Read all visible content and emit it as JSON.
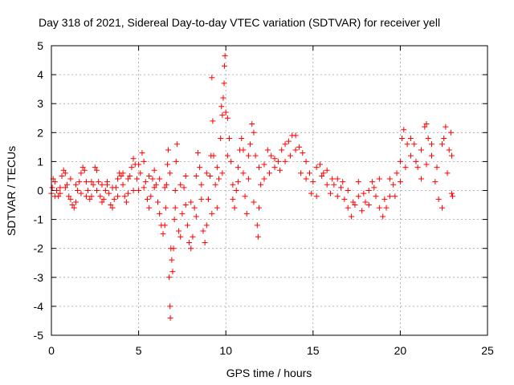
{
  "chart_data": {
    "type": "scatter",
    "title": "Day 318 of 2021, Sidereal Day-to-day VTEC variation (SDTVAR) for receiver yell",
    "xlabel": "GPS time / hours",
    "ylabel": "SDTVAR / TECUs",
    "xlim": [
      0,
      25
    ],
    "ylim": [
      -5,
      5
    ],
    "xticks": [
      0,
      5,
      10,
      15,
      20,
      25
    ],
    "yticks": [
      -5,
      -4,
      -3,
      -2,
      -1,
      0,
      1,
      2,
      3,
      4,
      5
    ],
    "xtick_labels": [
      "0",
      "5",
      "10",
      "15",
      "20",
      "25"
    ],
    "ytick_labels": [
      "-5",
      "-4",
      "-3",
      "-2",
      "-1",
      "0",
      "1",
      "2",
      "3",
      "4",
      "5"
    ],
    "grid": true,
    "marker": "+",
    "color": "#ff0000",
    "series": [
      {
        "name": "SDTVAR",
        "points": [
          [
            0.0,
            -0.1
          ],
          [
            0.05,
            0.1
          ],
          [
            0.1,
            0.4
          ],
          [
            0.2,
            0.3
          ],
          [
            0.3,
            0.0
          ],
          [
            0.4,
            -0.2
          ],
          [
            0.5,
            0.1
          ],
          [
            0.6,
            0.5
          ],
          [
            0.7,
            0.7
          ],
          [
            0.8,
            0.6
          ],
          [
            0.9,
            0.2
          ],
          [
            1.0,
            -0.2
          ],
          [
            1.1,
            -0.3
          ],
          [
            1.2,
            -0.5
          ],
          [
            1.3,
            -0.6
          ],
          [
            1.4,
            -0.4
          ],
          [
            1.5,
            0.0
          ],
          [
            1.6,
            0.3
          ],
          [
            1.7,
            0.6
          ],
          [
            1.8,
            0.8
          ],
          [
            1.9,
            0.7
          ],
          [
            2.0,
            0.3
          ],
          [
            2.1,
            0.0
          ],
          [
            2.2,
            -0.3
          ],
          [
            2.3,
            -0.2
          ],
          [
            2.4,
            0.2
          ],
          [
            2.5,
            0.8
          ],
          [
            2.6,
            0.7
          ],
          [
            2.7,
            0.3
          ],
          [
            2.8,
            -0.2
          ],
          [
            2.9,
            -0.4
          ],
          [
            3.0,
            -0.3
          ],
          [
            3.1,
            0.0
          ],
          [
            3.2,
            0.2
          ],
          [
            3.3,
            -0.1
          ],
          [
            3.4,
            -0.5
          ],
          [
            3.5,
            -0.6
          ],
          [
            3.6,
            -0.3
          ],
          [
            3.7,
            0.1
          ],
          [
            3.8,
            0.4
          ],
          [
            3.9,
            0.6
          ],
          [
            4.0,
            0.5
          ],
          [
            4.1,
            0.2
          ],
          [
            4.2,
            -0.2
          ],
          [
            4.3,
            -0.4
          ],
          [
            4.4,
            -0.1
          ],
          [
            4.5,
            0.5
          ],
          [
            4.6,
            0.8
          ],
          [
            4.7,
            1.1
          ],
          [
            4.8,
            0.9
          ],
          [
            4.9,
            0.4
          ],
          [
            5.0,
            0.0
          ],
          [
            5.1,
            0.6
          ],
          [
            5.2,
            1.3
          ],
          [
            5.3,
            1.0
          ],
          [
            5.4,
            0.3
          ],
          [
            5.5,
            -0.3
          ],
          [
            5.6,
            -0.6
          ],
          [
            5.7,
            -0.2
          ],
          [
            5.8,
            0.4
          ],
          [
            5.9,
            0.7
          ],
          [
            6.0,
            0.2
          ],
          [
            6.1,
            -0.4
          ],
          [
            6.2,
            -0.8
          ],
          [
            6.3,
            -1.2
          ],
          [
            6.4,
            -1.5
          ],
          [
            6.5,
            -1.2
          ],
          [
            6.55,
            -0.6
          ],
          [
            6.6,
            0.2
          ],
          [
            6.65,
            0.9
          ],
          [
            6.7,
            1.4
          ],
          [
            6.75,
            -3.0
          ],
          [
            6.8,
            -4.0
          ],
          [
            6.82,
            -4.4
          ],
          [
            6.85,
            -2.0
          ],
          [
            6.9,
            -2.4
          ],
          [
            6.95,
            -2.8
          ],
          [
            7.0,
            -2.0
          ],
          [
            7.05,
            -1.0
          ],
          [
            7.1,
            0.0
          ],
          [
            7.15,
            1.0
          ],
          [
            7.2,
            1.6
          ],
          [
            7.3,
            -1.4
          ],
          [
            7.4,
            -1.6
          ],
          [
            7.5,
            -0.8
          ],
          [
            7.6,
            0.1
          ],
          [
            7.7,
            -0.5
          ],
          [
            7.8,
            -1.2
          ],
          [
            7.9,
            -1.8
          ],
          [
            8.0,
            -2.0
          ],
          [
            8.1,
            -1.6
          ],
          [
            8.2,
            -0.6
          ],
          [
            8.3,
            0.5
          ],
          [
            8.4,
            1.3
          ],
          [
            8.5,
            0.8
          ],
          [
            8.6,
            -0.3
          ],
          [
            8.7,
            -1.4
          ],
          [
            8.8,
            -1.8
          ],
          [
            8.9,
            -1.2
          ],
          [
            9.0,
            -0.3
          ],
          [
            9.1,
            0.5
          ],
          [
            9.15,
            1.2
          ],
          [
            9.2,
            3.9
          ],
          [
            9.25,
            2.4
          ],
          [
            9.3,
            1.2
          ],
          [
            9.4,
            0.2
          ],
          [
            9.5,
            -0.6
          ],
          [
            9.6,
            0.4
          ],
          [
            9.7,
            1.8
          ],
          [
            9.75,
            2.9
          ],
          [
            9.8,
            2.6
          ],
          [
            9.85,
            3.2
          ],
          [
            9.9,
            3.7
          ],
          [
            9.92,
            4.3
          ],
          [
            9.95,
            4.65
          ],
          [
            10.0,
            2.7
          ],
          [
            10.1,
            2.5
          ],
          [
            10.2,
            1.8
          ],
          [
            10.3,
            1.0
          ],
          [
            10.4,
            0.2
          ],
          [
            10.5,
            -0.6
          ],
          [
            10.6,
            0.0
          ],
          [
            10.7,
            0.8
          ],
          [
            10.8,
            1.4
          ],
          [
            10.9,
            1.8
          ],
          [
            11.0,
            0.6
          ],
          [
            11.1,
            -0.2
          ],
          [
            11.2,
            -0.8
          ],
          [
            11.3,
            0.4
          ],
          [
            11.4,
            1.6
          ],
          [
            11.5,
            2.3
          ],
          [
            11.6,
            2.0
          ],
          [
            11.7,
            1.2
          ],
          [
            11.8,
            -1.2
          ],
          [
            11.85,
            -1.6
          ],
          [
            11.9,
            -0.6
          ],
          [
            12.0,
            0.2
          ],
          [
            12.2,
            0.9
          ],
          [
            12.4,
            1.4
          ],
          [
            12.6,
            1.2
          ],
          [
            12.8,
            0.8
          ],
          [
            13.0,
            1.0
          ],
          [
            13.2,
            1.4
          ],
          [
            13.4,
            1.6
          ],
          [
            13.6,
            1.7
          ],
          [
            13.8,
            1.9
          ],
          [
            14.0,
            1.9
          ],
          [
            14.2,
            1.5
          ],
          [
            14.4,
            1.3
          ],
          [
            14.6,
            1.0
          ],
          [
            14.8,
            0.6
          ],
          [
            15.0,
            0.3
          ],
          [
            15.2,
            0.8
          ],
          [
            15.4,
            0.9
          ],
          [
            15.6,
            0.6
          ],
          [
            15.8,
            0.2
          ],
          [
            16.0,
            -0.1
          ],
          [
            16.2,
            0.2
          ],
          [
            16.4,
            0.4
          ],
          [
            16.6,
            0.1
          ],
          [
            16.8,
            -0.3
          ],
          [
            17.0,
            -0.6
          ],
          [
            17.2,
            -0.9
          ],
          [
            17.4,
            -0.5
          ],
          [
            17.6,
            -0.2
          ],
          [
            17.8,
            -0.7
          ],
          [
            18.0,
            -0.4
          ],
          [
            18.2,
            0.0
          ],
          [
            18.4,
            0.3
          ],
          [
            18.6,
            -0.2
          ],
          [
            18.8,
            -0.6
          ],
          [
            19.0,
            -0.9
          ],
          [
            19.2,
            -0.6
          ],
          [
            19.4,
            -0.2
          ],
          [
            19.6,
            0.2
          ],
          [
            19.8,
            0.6
          ],
          [
            20.0,
            1.0
          ],
          [
            20.1,
            1.8
          ],
          [
            20.2,
            2.1
          ],
          [
            20.4,
            1.6
          ],
          [
            20.6,
            1.2
          ],
          [
            20.8,
            1.6
          ],
          [
            21.0,
            0.8
          ],
          [
            21.2,
            1.4
          ],
          [
            21.4,
            2.2
          ],
          [
            21.5,
            2.3
          ],
          [
            21.6,
            1.8
          ],
          [
            21.8,
            1.2
          ],
          [
            22.0,
            0.3
          ],
          [
            22.2,
            -0.3
          ],
          [
            22.4,
            -0.6
          ],
          [
            22.5,
            1.8
          ],
          [
            22.6,
            2.2
          ],
          [
            22.8,
            1.4
          ],
          [
            22.9,
            2.0
          ],
          [
            22.95,
            1.2
          ],
          [
            23.0,
            -0.2
          ],
          [
            0.2,
            -0.2
          ],
          [
            0.5,
            -0.1
          ],
          [
            0.8,
            0.1
          ],
          [
            1.1,
            0.4
          ],
          [
            1.4,
            0.2
          ],
          [
            1.7,
            -0.1
          ],
          [
            2.0,
            -0.2
          ],
          [
            2.3,
            0.3
          ],
          [
            2.6,
            0.0
          ],
          [
            2.9,
            0.2
          ],
          [
            3.2,
            0.3
          ],
          [
            3.5,
            0.1
          ],
          [
            3.8,
            -0.2
          ],
          [
            4.1,
            0.6
          ],
          [
            4.4,
            0.4
          ],
          [
            4.7,
            0.0
          ],
          [
            5.0,
            0.9
          ],
          [
            5.3,
            0.1
          ],
          [
            5.6,
            0.5
          ],
          [
            5.9,
            0.1
          ],
          [
            6.2,
            0.4
          ],
          [
            6.5,
            0.1
          ],
          [
            6.8,
            0.6
          ],
          [
            7.1,
            -0.6
          ],
          [
            7.4,
            0.2
          ],
          [
            7.7,
            0.5
          ],
          [
            8.0,
            -0.4
          ],
          [
            8.3,
            -0.9
          ],
          [
            8.6,
            0.2
          ],
          [
            8.9,
            0.6
          ],
          [
            9.2,
            -0.8
          ],
          [
            9.5,
            0.8
          ],
          [
            9.8,
            0.6
          ],
          [
            10.1,
            1.2
          ],
          [
            10.4,
            -0.3
          ],
          [
            10.7,
            0.3
          ],
          [
            11.0,
            1.4
          ],
          [
            11.3,
            1.2
          ],
          [
            11.6,
            -0.4
          ],
          [
            11.9,
            0.8
          ],
          [
            12.2,
            0.4
          ],
          [
            12.5,
            0.6
          ],
          [
            12.8,
            1.1
          ],
          [
            13.1,
            0.7
          ],
          [
            13.4,
            1.0
          ],
          [
            13.7,
            1.2
          ],
          [
            14.0,
            1.4
          ],
          [
            14.3,
            0.6
          ],
          [
            14.6,
            0.4
          ],
          [
            14.9,
            -0.1
          ],
          [
            15.2,
            -0.2
          ],
          [
            15.5,
            0.5
          ],
          [
            15.8,
            0.7
          ],
          [
            16.1,
            0.4
          ],
          [
            16.4,
            -0.2
          ],
          [
            16.7,
            0.3
          ],
          [
            17.0,
            0.0
          ],
          [
            17.3,
            -0.4
          ],
          [
            17.6,
            0.3
          ],
          [
            17.9,
            -0.1
          ],
          [
            18.2,
            -0.5
          ],
          [
            18.5,
            0.1
          ],
          [
            18.8,
            0.4
          ],
          [
            19.1,
            -0.3
          ],
          [
            19.4,
            0.4
          ],
          [
            19.7,
            -0.2
          ],
          [
            20.0,
            0.3
          ],
          [
            20.3,
            0.8
          ],
          [
            20.6,
            1.8
          ],
          [
            20.9,
            1.0
          ],
          [
            21.2,
            0.4
          ],
          [
            21.5,
            0.9
          ],
          [
            21.8,
            1.6
          ],
          [
            22.1,
            0.8
          ],
          [
            22.4,
            1.6
          ],
          [
            22.7,
            0.6
          ],
          [
            22.95,
            -0.1
          ]
        ]
      }
    ]
  }
}
